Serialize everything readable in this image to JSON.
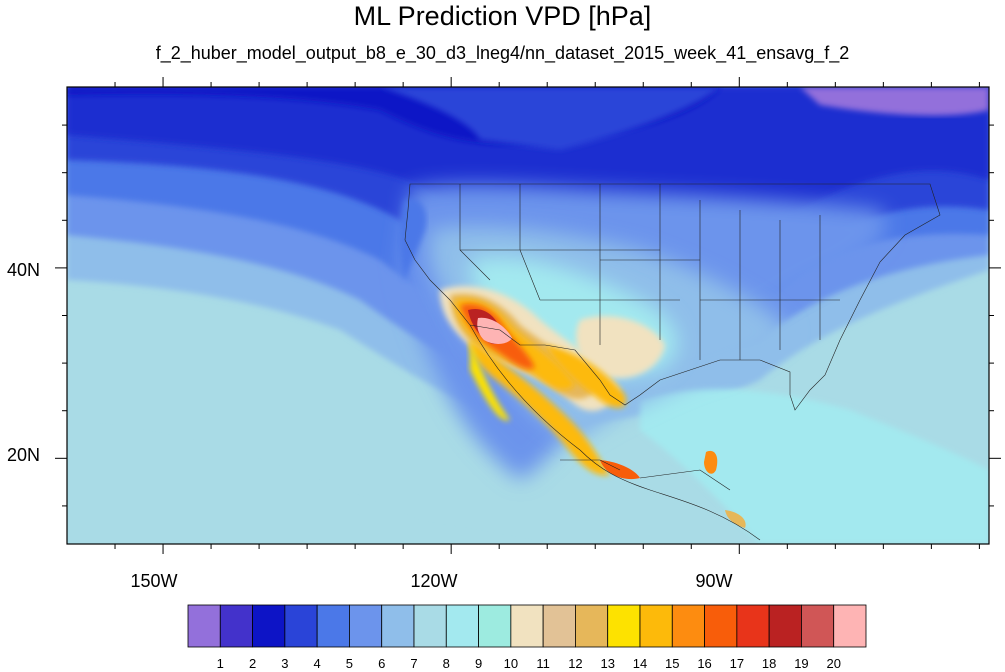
{
  "title": "ML Prediction VPD [hPa]",
  "subtitle": "f_2_huber_model_output_b8_e_30_d3_lneg4/nn_dataset_2015_week_41_ensavg_f_2",
  "map": {
    "lon_range": [
      -160,
      -64
    ],
    "lat_range": [
      11,
      59
    ],
    "lon_ticks": [
      {
        "value": -150,
        "label": "150W"
      },
      {
        "value": -120,
        "label": "120W"
      },
      {
        "value": -90,
        "label": "90W"
      }
    ],
    "lat_ticks": [
      {
        "value": 40,
        "label": "40N"
      },
      {
        "value": 20,
        "label": "20N"
      }
    ]
  },
  "colorbar": {
    "labels": [
      "1",
      "2",
      "3",
      "4",
      "5",
      "6",
      "7",
      "8",
      "9",
      "10",
      "11",
      "12",
      "13",
      "14",
      "15",
      "16",
      "17",
      "18",
      "19",
      "20"
    ],
    "colors": [
      "#9370db",
      "#4332cb",
      "#0d14c6",
      "#2a44d8",
      "#4b78e8",
      "#6c94ec",
      "#8fbeea",
      "#a9dbe6",
      "#a3e9ef",
      "#9debe0",
      "#f1e2c0",
      "#e2c296",
      "#e6b75a",
      "#fde200",
      "#fdba0a",
      "#fd8c10",
      "#f85d0a",
      "#e8341a",
      "#ba2222",
      "#d05656",
      "#feb4b4"
    ]
  }
}
